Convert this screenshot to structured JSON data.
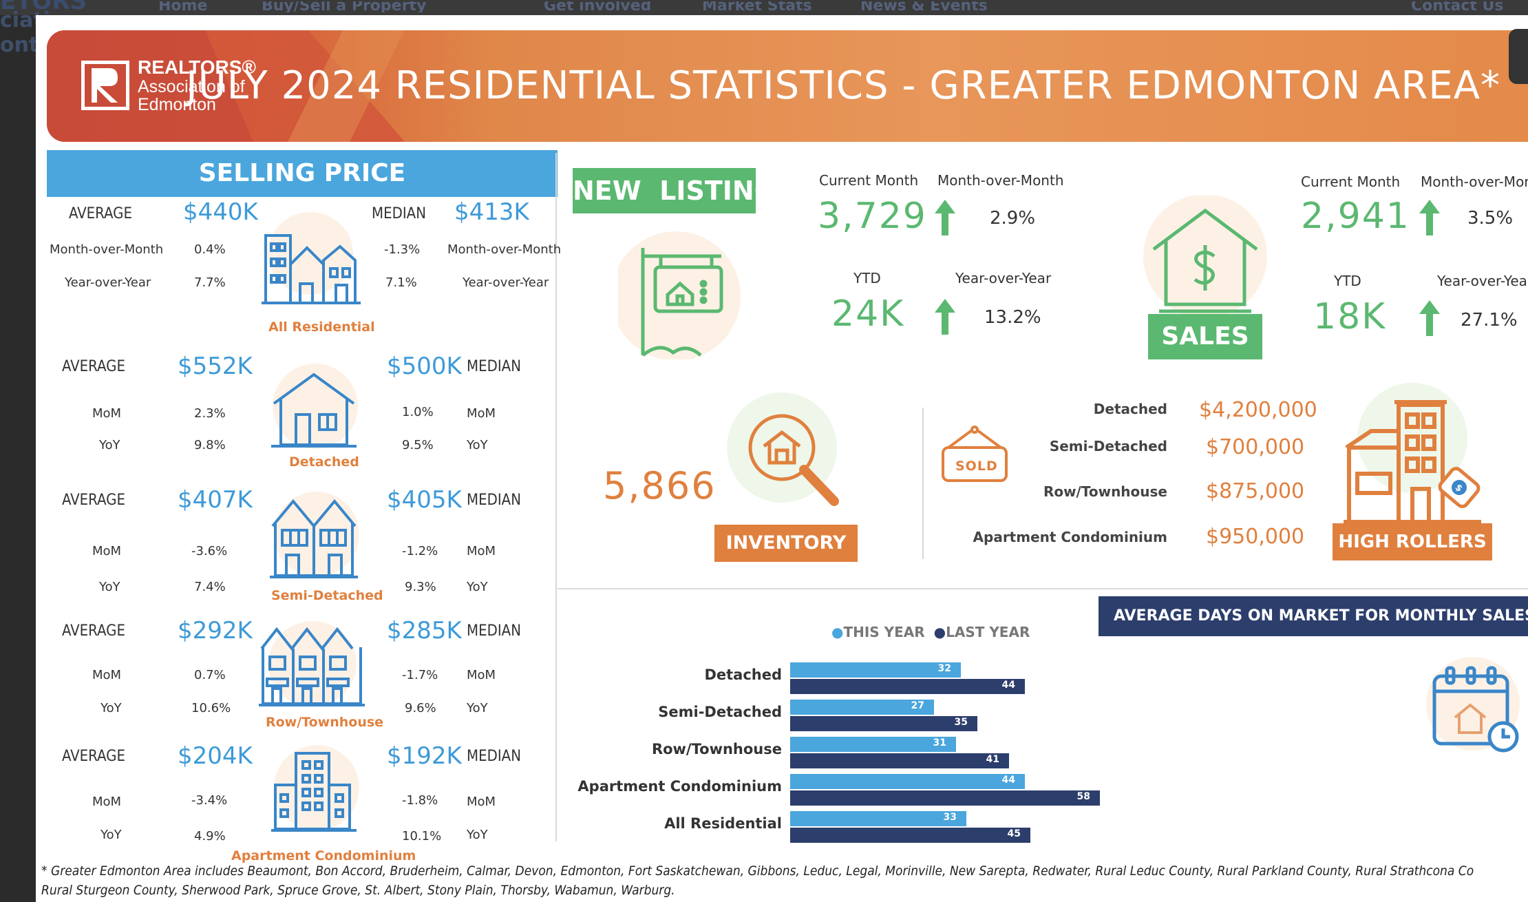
{
  "background": {
    "ghost_logo_text": "ETORS",
    "ghost_left_lines": [
      "ciati",
      "ontc"
    ],
    "ghost_nav": [
      "Home",
      "Buy/Sell a Property",
      "Get involved",
      "Market Stats",
      "News & Events",
      "Contact Us"
    ]
  },
  "colors": {
    "accent_blue": "#4aa6dd",
    "green": "#5bb870",
    "orange": "#e0803e",
    "navy": "#2c3e6c",
    "this_year": "#4aa6dd",
    "last_year": "#2c3e6c"
  },
  "banner": {
    "logo_line1": "REALTORS®",
    "logo_line2": "Association of",
    "logo_line3": "Edmonton",
    "title": "JULY 2024 RESIDENTIAL STATISTICS - GREATER EDMONTON AREA*"
  },
  "selling_price": {
    "heading": "SELLING PRICE",
    "groups": [
      {
        "name": "All Residential",
        "average_label": "AVERAGE",
        "average": "$440K",
        "median_label": "MEDIAN",
        "median": "$413K",
        "mom_label": "Month-over-Month",
        "yoy_label": "Year-over-Year",
        "avg_mom": "0.4%",
        "avg_yoy": "7.7%",
        "med_mom": "-1.3%",
        "med_yoy": "7.1%",
        "icon": "houses-icon"
      },
      {
        "name": "Detached",
        "average_label": "AVERAGE",
        "average": "$552K",
        "median_label": "MEDIAN",
        "median": "$500K",
        "mom_label": "MoM",
        "yoy_label": "YoY",
        "avg_mom": "2.3%",
        "avg_yoy": "9.8%",
        "med_mom": "1.0%",
        "med_yoy": "9.5%",
        "icon": "house-icon"
      },
      {
        "name": "Semi-Detached",
        "average_label": "AVERAGE",
        "average": "$407K",
        "median_label": "MEDIAN",
        "median": "$405K",
        "mom_label": "MoM",
        "yoy_label": "YoY",
        "avg_mom": "-3.6%",
        "avg_yoy": "7.4%",
        "med_mom": "-1.2%",
        "med_yoy": "9.3%",
        "icon": "semi-detached-icon"
      },
      {
        "name": "Row/Townhouse",
        "average_label": "AVERAGE",
        "average": "$292K",
        "median_label": "MEDIAN",
        "median": "$285K",
        "mom_label": "MoM",
        "yoy_label": "YoY",
        "avg_mom": "0.7%",
        "avg_yoy": "10.6%",
        "med_mom": "-1.7%",
        "med_yoy": "9.6%",
        "icon": "townhouse-icon"
      },
      {
        "name": "Apartment Condominium",
        "average_label": "AVERAGE",
        "average": "$204K",
        "median_label": "MEDIAN",
        "median": "$192K",
        "mom_label": "MoM",
        "yoy_label": "YoY",
        "avg_mom": "-3.4%",
        "avg_yoy": "4.9%",
        "med_mom": "-1.8%",
        "med_yoy": "10.1%",
        "icon": "apartment-icon"
      }
    ]
  },
  "new_listings": {
    "heading": "NEW  LISTINGS",
    "current_month_label": "Current Month",
    "current_month": "3,729",
    "mom_label": "Month-over-Month",
    "mom": "2.9%",
    "ytd_label": "YTD",
    "ytd": "24K",
    "yoy_label": "Year-over-Year",
    "yoy": "13.2%"
  },
  "sales": {
    "heading": "SALES",
    "current_month_label": "Current Month",
    "current_month": "2,941",
    "mom_label": "Month-over-Mon",
    "mom": "3.5%",
    "ytd_label": "YTD",
    "ytd": "18K",
    "yoy_label": "Year-over-Year",
    "yoy": "27.1%"
  },
  "inventory": {
    "heading": "INVENTORY",
    "value": "5,866"
  },
  "high_rollers": {
    "heading": "HIGH ROLLERS",
    "sold_sign": "SOLD",
    "items": [
      {
        "label": "Detached",
        "value": "$4,200,000"
      },
      {
        "label": "Semi-Detached",
        "value": "$700,000"
      },
      {
        "label": "Row/Townhouse",
        "value": "$875,000"
      },
      {
        "label": "Apartment Condominium",
        "value": "$950,000"
      }
    ]
  },
  "days_on_market": {
    "heading": "AVERAGE DAYS ON MARKET FOR MONTHLY SALES"
  },
  "chart_data": {
    "type": "bar",
    "orientation": "horizontal",
    "categories": [
      "Detached",
      "Semi-Detached",
      "Row/Townhouse",
      "Apartment Condominium",
      "All Residential"
    ],
    "series": [
      {
        "name": "THIS YEAR",
        "values": [
          32,
          27,
          31,
          44,
          33
        ],
        "color": "#4aa6dd"
      },
      {
        "name": "LAST YEAR",
        "values": [
          44,
          35,
          41,
          58,
          45
        ],
        "color": "#2c3e6c"
      }
    ],
    "legend_placement": "top",
    "grid": false,
    "xlim": [
      0,
      58
    ]
  },
  "footnote": {
    "line1": "* Greater Edmonton Area includes Beaumont, Bon Accord, Bruderheim, Calmar, Devon, Edmonton, Fort Saskatchewan, Gibbons, Leduc, Legal, Morinville, New Sarepta, Redwater, Rural Leduc County, Rural Parkland County, Rural Strathcona Co",
    "line2": "Rural Sturgeon County, Sherwood Park, Spruce Grove, St. Albert, Stony Plain, Thorsby, Wabamun, Warburg."
  }
}
